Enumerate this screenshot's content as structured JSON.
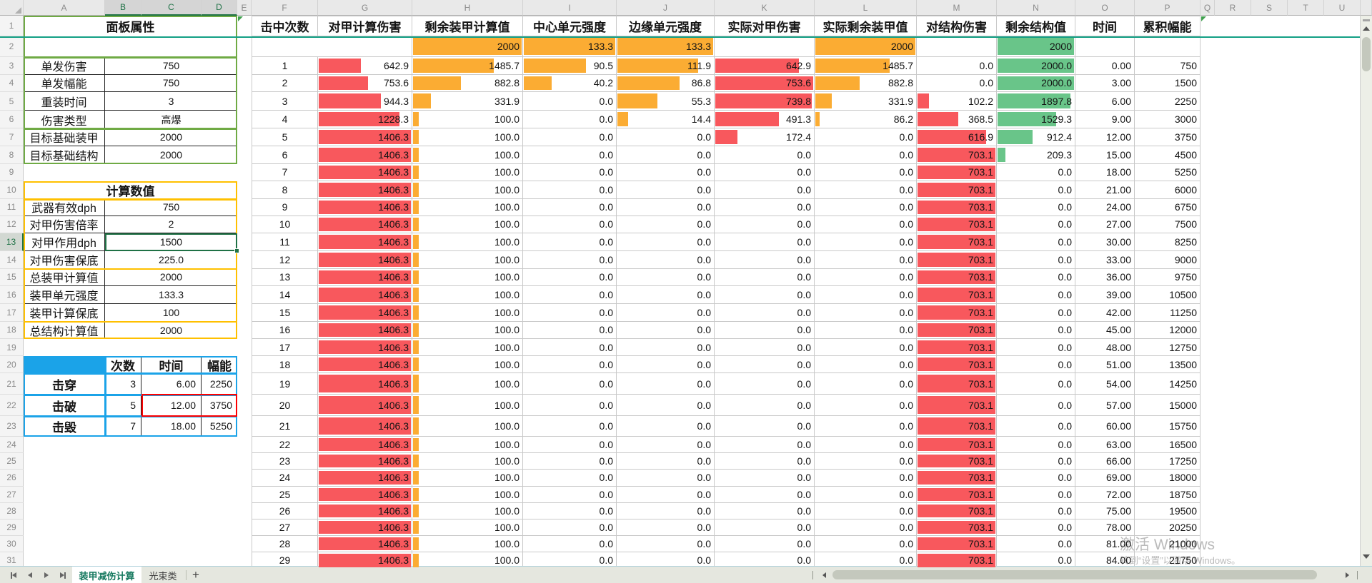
{
  "sheet": {
    "column_letters": [
      "A",
      "B",
      "C",
      "D",
      "E",
      "F",
      "G",
      "H",
      "I",
      "J",
      "K",
      "L",
      "M",
      "N",
      "O",
      "P",
      "Q",
      "R",
      "S",
      "T",
      "U"
    ],
    "row_count": 31,
    "selected_columns": [
      "B",
      "C",
      "D"
    ],
    "selected_row": 13
  },
  "panel_properties": {
    "title": "面板属性",
    "rows": [
      {
        "label": "单发伤害",
        "value": "750"
      },
      {
        "label": "单发幅能",
        "value": "750"
      },
      {
        "label": "重装时间",
        "value": "3"
      },
      {
        "label": "伤害类型",
        "value": "高爆"
      },
      {
        "label": "目标基础装甲",
        "value": "2000"
      },
      {
        "label": "目标基础结构",
        "value": "2000"
      }
    ]
  },
  "calc_values": {
    "title": "计算数值",
    "rows": [
      {
        "label": "武器有效dph",
        "value": "750"
      },
      {
        "label": "对甲伤害倍率",
        "value": "2"
      },
      {
        "label": "对甲作用dph",
        "value": "1500"
      },
      {
        "label": "对甲伤害保底",
        "value": "225.0"
      },
      {
        "label": "总装甲计算值",
        "value": "2000"
      },
      {
        "label": "装甲单元强度",
        "value": "133.3"
      },
      {
        "label": "装甲计算保底",
        "value": "100"
      },
      {
        "label": "总结构计算值",
        "value": "2000"
      }
    ]
  },
  "result_table": {
    "headers": [
      "次数",
      "时间",
      "幅能"
    ],
    "rows": [
      {
        "label": "击穿",
        "values": [
          "3",
          "6.00",
          "2250"
        ]
      },
      {
        "label": "击破",
        "values": [
          "5",
          "12.00",
          "3750"
        ]
      },
      {
        "label": "击毁",
        "values": [
          "7",
          "18.00",
          "5250"
        ]
      }
    ],
    "red_box_row": "击破"
  },
  "main_table": {
    "headers": [
      "击中次数",
      "对甲计算伤害",
      "剩余装甲计算值",
      "中心单元强度",
      "边缘单元强度",
      "实际对甲伤害",
      "实际剩余装甲值",
      "对结构伤害",
      "剩余结构值",
      "时间",
      "累积幅能"
    ],
    "initial_values": [
      "",
      "",
      "2000",
      "133.3",
      "133.3",
      "",
      "2000",
      "",
      "2000",
      "",
      ""
    ],
    "rows": [
      [
        "1",
        "642.9",
        "1485.7",
        "90.5",
        "111.9",
        "642.9",
        "1485.7",
        "0.0",
        "2000.0",
        "0.00",
        "750"
      ],
      [
        "2",
        "753.6",
        "882.8",
        "40.2",
        "86.8",
        "753.6",
        "882.8",
        "0.0",
        "2000.0",
        "3.00",
        "1500"
      ],
      [
        "3",
        "944.3",
        "331.9",
        "0.0",
        "55.3",
        "739.8",
        "331.9",
        "102.2",
        "1897.8",
        "6.00",
        "2250"
      ],
      [
        "4",
        "1228.3",
        "100.0",
        "0.0",
        "14.4",
        "491.3",
        "86.2",
        "368.5",
        "1529.3",
        "9.00",
        "3000"
      ],
      [
        "5",
        "1406.3",
        "100.0",
        "0.0",
        "0.0",
        "172.4",
        "0.0",
        "616.9",
        "912.4",
        "12.00",
        "3750"
      ],
      [
        "6",
        "1406.3",
        "100.0",
        "0.0",
        "0.0",
        "0.0",
        "0.0",
        "703.1",
        "209.3",
        "15.00",
        "4500"
      ],
      [
        "7",
        "1406.3",
        "100.0",
        "0.0",
        "0.0",
        "0.0",
        "0.0",
        "703.1",
        "0.0",
        "18.00",
        "5250"
      ],
      [
        "8",
        "1406.3",
        "100.0",
        "0.0",
        "0.0",
        "0.0",
        "0.0",
        "703.1",
        "0.0",
        "21.00",
        "6000"
      ],
      [
        "9",
        "1406.3",
        "100.0",
        "0.0",
        "0.0",
        "0.0",
        "0.0",
        "703.1",
        "0.0",
        "24.00",
        "6750"
      ],
      [
        "10",
        "1406.3",
        "100.0",
        "0.0",
        "0.0",
        "0.0",
        "0.0",
        "703.1",
        "0.0",
        "27.00",
        "7500"
      ],
      [
        "11",
        "1406.3",
        "100.0",
        "0.0",
        "0.0",
        "0.0",
        "0.0",
        "703.1",
        "0.0",
        "30.00",
        "8250"
      ],
      [
        "12",
        "1406.3",
        "100.0",
        "0.0",
        "0.0",
        "0.0",
        "0.0",
        "703.1",
        "0.0",
        "33.00",
        "9000"
      ],
      [
        "13",
        "1406.3",
        "100.0",
        "0.0",
        "0.0",
        "0.0",
        "0.0",
        "703.1",
        "0.0",
        "36.00",
        "9750"
      ],
      [
        "14",
        "1406.3",
        "100.0",
        "0.0",
        "0.0",
        "0.0",
        "0.0",
        "703.1",
        "0.0",
        "39.00",
        "10500"
      ],
      [
        "15",
        "1406.3",
        "100.0",
        "0.0",
        "0.0",
        "0.0",
        "0.0",
        "703.1",
        "0.0",
        "42.00",
        "11250"
      ],
      [
        "16",
        "1406.3",
        "100.0",
        "0.0",
        "0.0",
        "0.0",
        "0.0",
        "703.1",
        "0.0",
        "45.00",
        "12000"
      ],
      [
        "17",
        "1406.3",
        "100.0",
        "0.0",
        "0.0",
        "0.0",
        "0.0",
        "703.1",
        "0.0",
        "48.00",
        "12750"
      ],
      [
        "18",
        "1406.3",
        "100.0",
        "0.0",
        "0.0",
        "0.0",
        "0.0",
        "703.1",
        "0.0",
        "51.00",
        "13500"
      ],
      [
        "19",
        "1406.3",
        "100.0",
        "0.0",
        "0.0",
        "0.0",
        "0.0",
        "703.1",
        "0.0",
        "54.00",
        "14250"
      ],
      [
        "20",
        "1406.3",
        "100.0",
        "0.0",
        "0.0",
        "0.0",
        "0.0",
        "703.1",
        "0.0",
        "57.00",
        "15000"
      ],
      [
        "21",
        "1406.3",
        "100.0",
        "0.0",
        "0.0",
        "0.0",
        "0.0",
        "703.1",
        "0.0",
        "60.00",
        "15750"
      ],
      [
        "22",
        "1406.3",
        "100.0",
        "0.0",
        "0.0",
        "0.0",
        "0.0",
        "703.1",
        "0.0",
        "63.00",
        "16500"
      ],
      [
        "23",
        "1406.3",
        "100.0",
        "0.0",
        "0.0",
        "0.0",
        "0.0",
        "703.1",
        "0.0",
        "66.00",
        "17250"
      ],
      [
        "24",
        "1406.3",
        "100.0",
        "0.0",
        "0.0",
        "0.0",
        "0.0",
        "703.1",
        "0.0",
        "69.00",
        "18000"
      ],
      [
        "25",
        "1406.3",
        "100.0",
        "0.0",
        "0.0",
        "0.0",
        "0.0",
        "703.1",
        "0.0",
        "72.00",
        "18750"
      ],
      [
        "26",
        "1406.3",
        "100.0",
        "0.0",
        "0.0",
        "0.0",
        "0.0",
        "703.1",
        "0.0",
        "75.00",
        "19500"
      ],
      [
        "27",
        "1406.3",
        "100.0",
        "0.0",
        "0.0",
        "0.0",
        "0.0",
        "703.1",
        "0.0",
        "78.00",
        "20250"
      ],
      [
        "28",
        "1406.3",
        "100.0",
        "0.0",
        "0.0",
        "0.0",
        "0.0",
        "703.1",
        "0.0",
        "81.00",
        "21000"
      ],
      [
        "29",
        "1406.3",
        "100.0",
        "0.0",
        "0.0",
        "0.0",
        "0.0",
        "703.1",
        "0.0",
        "84.00",
        "21750"
      ]
    ],
    "databars": {
      "对甲计算伤害": {
        "color": "red",
        "max": 1406.3
      },
      "剩余装甲计算值": {
        "color": "orange",
        "max": 2000
      },
      "中心单元强度": {
        "color": "orange",
        "max": 133.3
      },
      "边缘单元强度": {
        "color": "orange",
        "max": 133.3
      },
      "实际对甲伤害": {
        "color": "red",
        "max": 753.6
      },
      "实际剩余装甲值": {
        "color": "orange",
        "max": 2000
      },
      "对结构伤害": {
        "color": "red",
        "max": 703.1
      },
      "剩余结构值": {
        "color": "green",
        "max": 2000
      }
    }
  },
  "colors": {
    "bar_red": "#f8585d",
    "bar_orange": "#fbac33",
    "bar_green": "#69c589",
    "table_green": "#6faa44",
    "table_orange": "#ffc000",
    "table_blue": "#1ba3e8",
    "selection_green": "#1f7145",
    "freeze_line": "#14a085",
    "red_highlight": "#fe0000"
  },
  "tab_bar": {
    "tabs": [
      {
        "label": "装甲减伤计算",
        "active": true
      },
      {
        "label": "光束类",
        "active": false
      }
    ],
    "add_button": "+"
  },
  "watermark": {
    "line1": "激活 Windows",
    "line2": "转到“设置”以激活 Windows。"
  }
}
